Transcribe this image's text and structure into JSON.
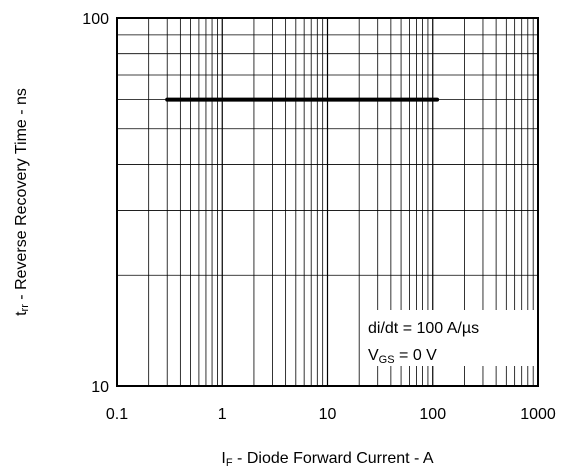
{
  "chart_data": {
    "type": "line",
    "x_scale": "log",
    "y_scale": "log",
    "xlim": [
      0.1,
      1000
    ],
    "ylim": [
      10,
      100
    ],
    "grid": true,
    "x_ticks": [
      "0.1",
      "1",
      "10",
      "100",
      "1000"
    ],
    "y_ticks": [
      "10",
      "100"
    ],
    "xlabel": {
      "main": "I",
      "sub": "F",
      "rest": " - Diode Forward Current - A"
    },
    "ylabel": {
      "main": "t",
      "sub": "rr",
      "rest": " - Reverse Recovery Time - ns"
    },
    "annotations": [
      {
        "main": "di/dt = 100 A/µs",
        "sub": "",
        "rest": ""
      },
      {
        "main": "V",
        "sub": "GS",
        "rest": " = 0 V"
      }
    ],
    "series": [
      {
        "x": [
          0.3,
          0.5,
          1,
          2,
          5,
          10,
          20,
          50,
          110
        ],
        "y": [
          60,
          60,
          60,
          60,
          60,
          60,
          60,
          60,
          60
        ],
        "color": "#000000"
      }
    ]
  }
}
